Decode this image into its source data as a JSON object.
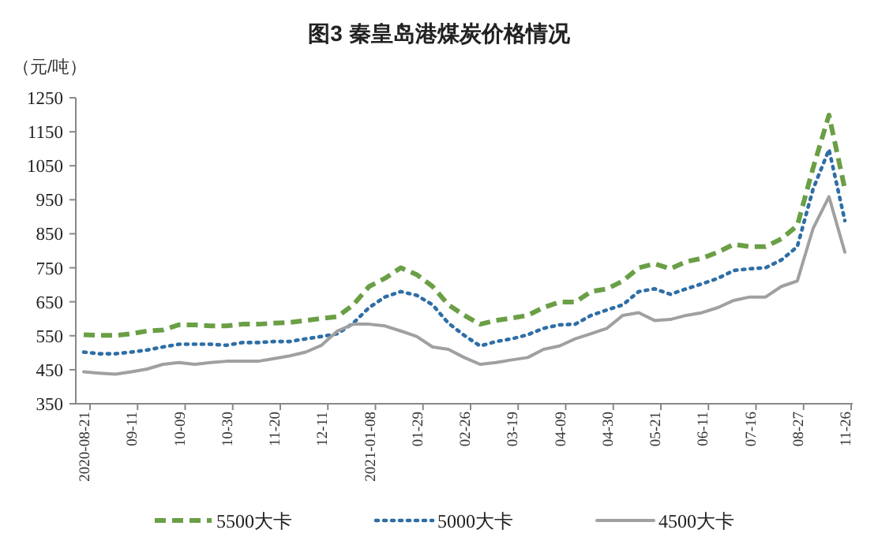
{
  "chart_data": {
    "type": "line",
    "title": "图3    秦皇岛港煤炭价格情况",
    "ylabel": "（元/吨）",
    "categories": [
      "2020-08-21",
      null,
      null,
      "09-11",
      null,
      null,
      "10-09",
      null,
      null,
      "10-30",
      null,
      null,
      "11-20",
      null,
      null,
      "12-11",
      null,
      null,
      "2021-01-08",
      null,
      null,
      "01-29",
      null,
      null,
      "02-26",
      null,
      null,
      "03-19",
      null,
      null,
      "04-09",
      null,
      null,
      "04-30",
      null,
      null,
      "05-21",
      null,
      null,
      "06-11",
      null,
      null,
      "07-16",
      null,
      null,
      "08-27",
      null,
      null,
      "11-26"
    ],
    "ylim": [
      350,
      1250
    ],
    "yticks": [
      350,
      450,
      550,
      650,
      750,
      850,
      950,
      1050,
      1150,
      1250
    ],
    "legend": "bottom",
    "series": [
      {
        "name": "5500大卡",
        "color": "#6a9f45",
        "line_style": "dashed",
        "values": [
          553,
          551,
          551,
          556,
          564,
          567,
          582,
          582,
          579,
          579,
          584,
          584,
          587,
          589,
          595,
          601,
          606,
          641,
          695,
          719,
          750,
          730,
          695,
          641,
          610,
          584,
          595,
          602,
          610,
          633,
          649,
          649,
          680,
          688,
          711,
          750,
          762,
          747,
          768,
          778,
          796,
          819,
          812,
          812,
          835,
          874,
          1044,
          1199,
          982
        ]
      },
      {
        "name": "5000大卡",
        "color": "#2e6ea6",
        "line_style": "dotted",
        "values": [
          502,
          497,
          497,
          502,
          508,
          517,
          525,
          525,
          525,
          522,
          530,
          530,
          533,
          533,
          541,
          548,
          556,
          587,
          633,
          664,
          680,
          669,
          641,
          587,
          551,
          520,
          533,
          541,
          553,
          572,
          582,
          584,
          610,
          626,
          641,
          680,
          688,
          672,
          688,
          703,
          719,
          742,
          747,
          750,
          773,
          812,
          982,
          1098,
          889
        ]
      },
      {
        "name": "4500大卡",
        "color": "#a0a0a0",
        "line_style": "solid",
        "values": [
          444,
          440,
          437,
          444,
          452,
          466,
          471,
          466,
          471,
          475,
          475,
          475,
          483,
          491,
          502,
          522,
          564,
          584,
          584,
          579,
          564,
          548,
          517,
          510,
          486,
          466,
          471,
          479,
          486,
          510,
          520,
          541,
          556,
          572,
          610,
          618,
          595,
          598,
          610,
          618,
          633,
          654,
          664,
          664,
          695,
          711,
          866,
          959,
          796
        ]
      }
    ]
  }
}
